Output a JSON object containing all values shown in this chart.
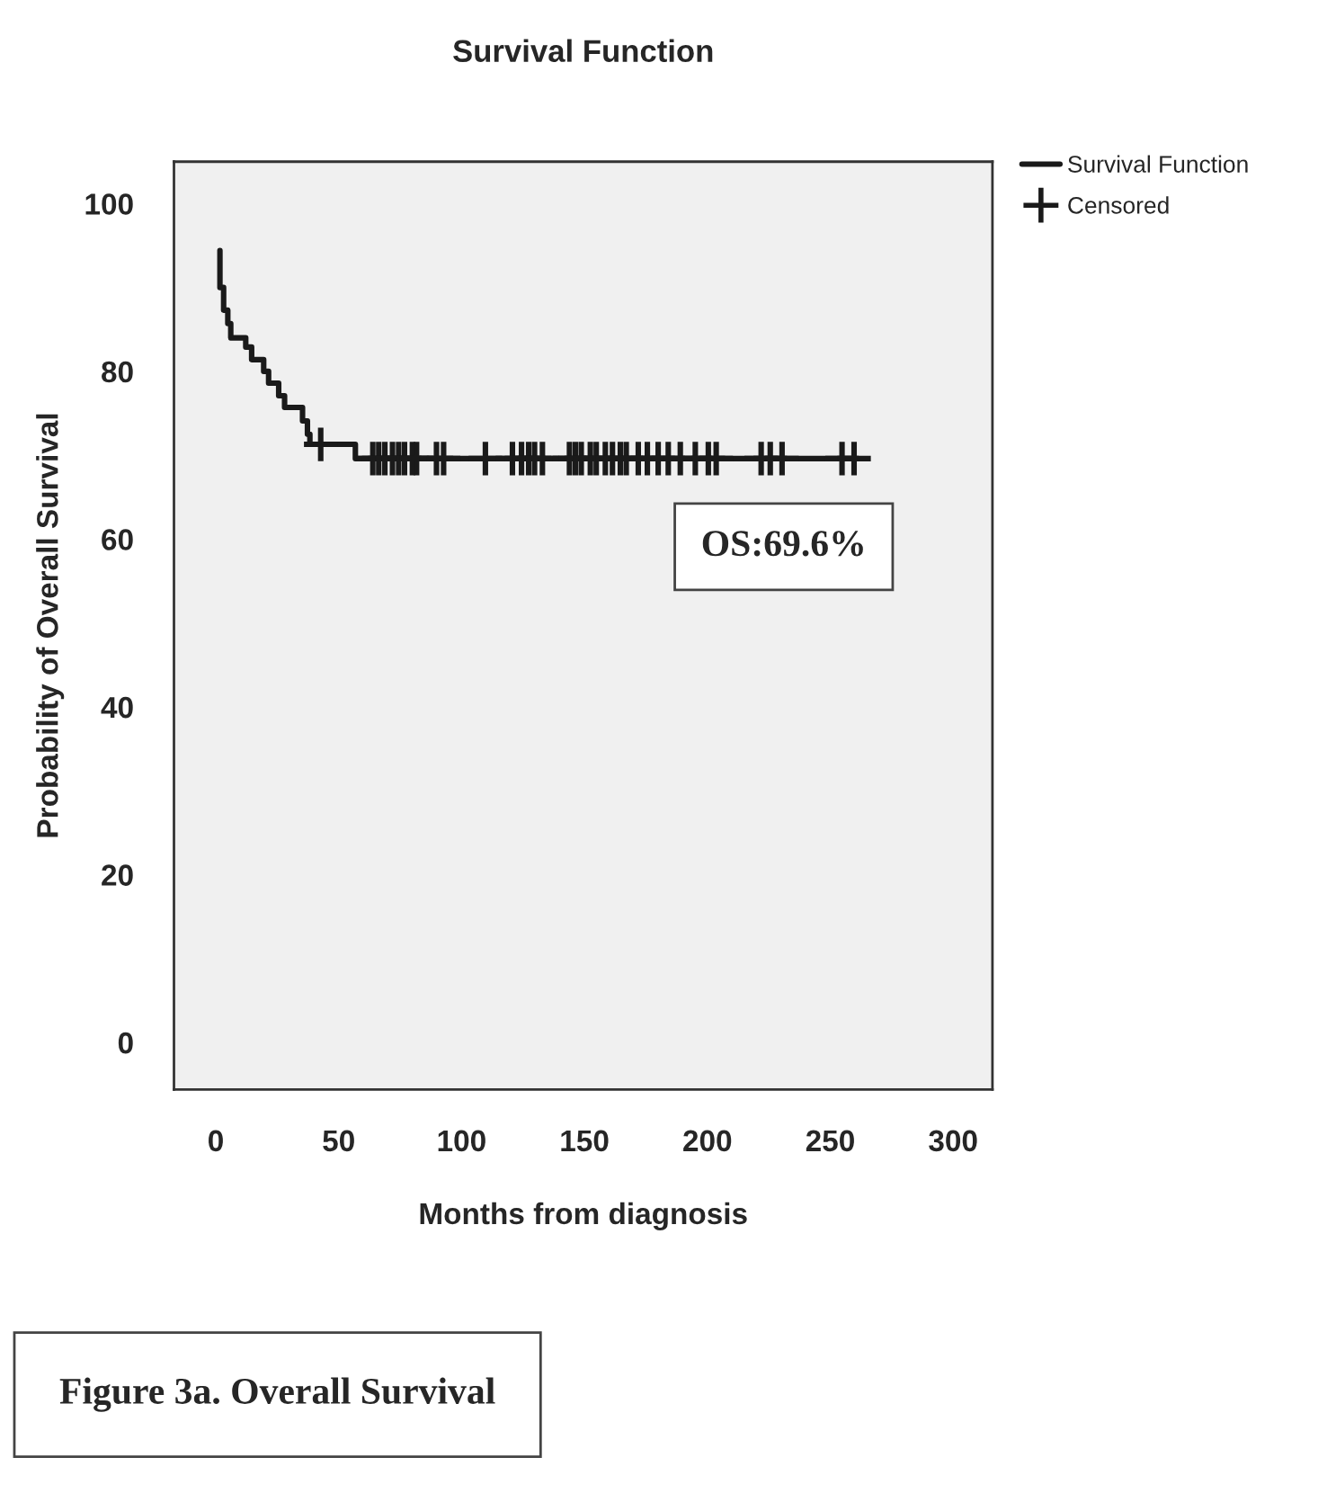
{
  "chart_data": {
    "type": "step",
    "title": "Survival Function",
    "xlabel": "Months from diagnosis",
    "ylabel": "Probability of Overall Survival",
    "xlim": [
      -17,
      316
    ],
    "ylim": [
      -5.6,
      105
    ],
    "xticks": [
      0,
      50,
      100,
      150,
      200,
      250,
      300
    ],
    "yticks": [
      0,
      20,
      40,
      60,
      80,
      100
    ],
    "grid": false,
    "legend": "top right",
    "annotations": [
      "OS:69.6%",
      "Figure 3a. Overall Survival"
    ],
    "series": [
      {
        "name": "Survival Function",
        "color": "#1a1a1a",
        "marker": "none",
        "line_style": "solid",
        "x": [
          1.7,
          1.7,
          3.2,
          4.9,
          6.1,
          12.2,
          14.6,
          19.5,
          21.5,
          25.6,
          28.0,
          35.3,
          37.3,
          38.3,
          56.8,
          260
        ],
        "values": [
          94.4,
          90.0,
          87.3,
          85.7,
          84.0,
          82.9,
          81.4,
          80.0,
          78.6,
          77.1,
          75.7,
          74.1,
          72.5,
          71.3,
          69.6,
          69.6
        ]
      },
      {
        "name": "Censored",
        "type": "scatter",
        "color": "#1a1a1a",
        "marker": "cross",
        "x": [
          42.7,
          63.9,
          66.3,
          68.8,
          71.9,
          74.4,
          76.8,
          80.0,
          81.7,
          89.8,
          92.7,
          109.7,
          120.7,
          124.4,
          127.3,
          129.7,
          132.9,
          143.9,
          146.3,
          148.7,
          152.4,
          154.8,
          158.5,
          161.4,
          164.6,
          167.0,
          171.9,
          175.6,
          180.0,
          184.1,
          189.0,
          195.1,
          200.4,
          203.6,
          221.9,
          225.6,
          230.4,
          254.8,
          259.7
        ],
        "values": [
          71.3,
          69.6,
          69.6,
          69.6,
          69.6,
          69.6,
          69.6,
          69.6,
          69.6,
          69.6,
          69.6,
          69.6,
          69.6,
          69.6,
          69.6,
          69.6,
          69.6,
          69.6,
          69.6,
          69.6,
          69.6,
          69.6,
          69.6,
          69.6,
          69.6,
          69.6,
          69.6,
          69.6,
          69.6,
          69.6,
          69.6,
          69.6,
          69.6,
          69.6,
          69.6,
          69.6,
          69.6,
          69.6,
          69.6
        ]
      }
    ]
  }
}
